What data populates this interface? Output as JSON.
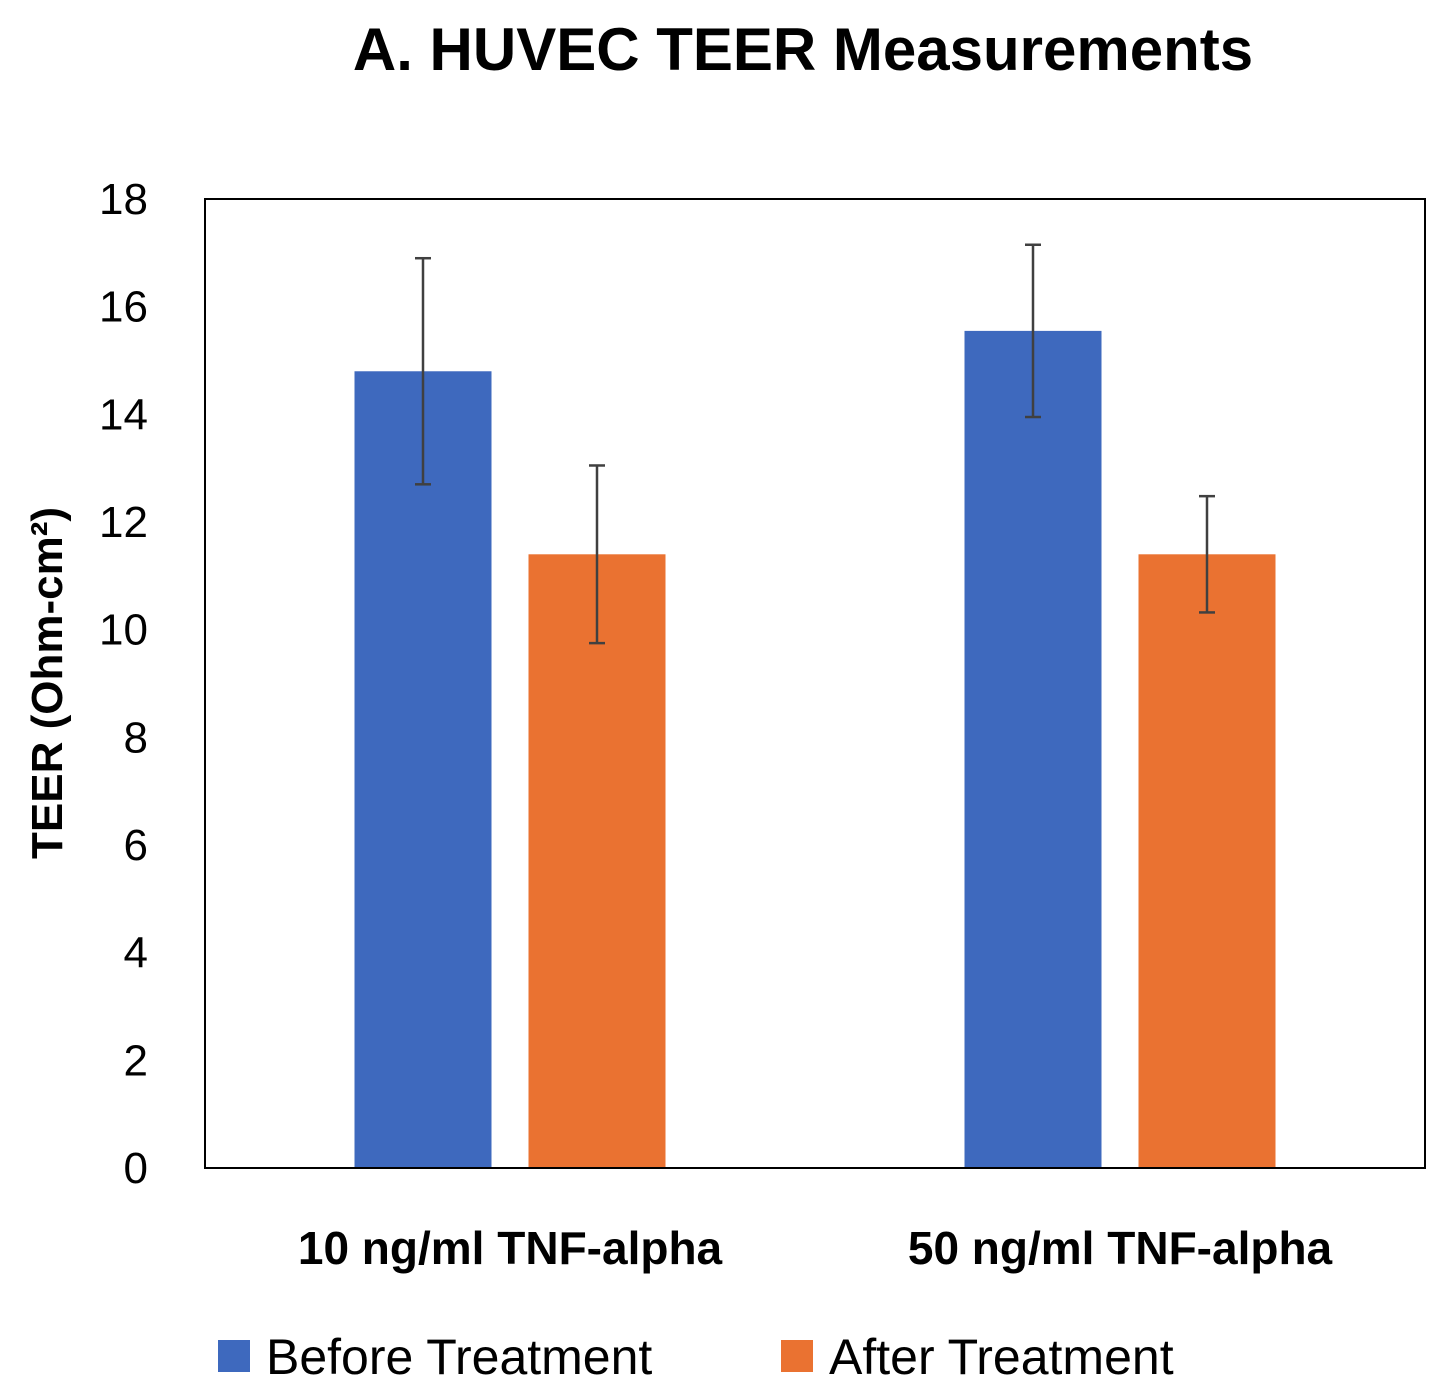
{
  "chart_data": {
    "type": "bar",
    "title": "A. HUVEC TEER Measurements",
    "xlabel": "",
    "ylabel": "TEER (Ohm-cm²)",
    "ylim": [
      0,
      18
    ],
    "yticks": [
      "0",
      "2",
      "4",
      "6",
      "8",
      "10",
      "12",
      "14",
      "16",
      "18"
    ],
    "categories": [
      "10 ng/ml TNF-alpha",
      "50 ng/ml TNF-alpha"
    ],
    "series": [
      {
        "name": "Before Treatment",
        "color": "#3E69BE",
        "values": [
          14.8,
          15.55
        ],
        "errors": [
          2.1,
          1.6
        ]
      },
      {
        "name": "After Treatment",
        "color": "#EA7231",
        "values": [
          11.4,
          11.4
        ],
        "errors": [
          1.65,
          1.08
        ]
      }
    ],
    "grid": false,
    "legend": "bottom"
  }
}
